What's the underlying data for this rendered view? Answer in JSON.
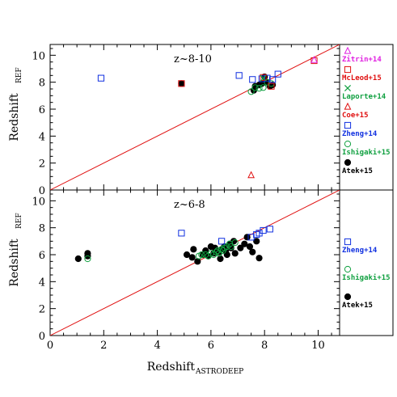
{
  "xlabel": "Redshift",
  "xlabel_sub": "ASTRODEEP",
  "ylabel": "Redshift",
  "ylabel_sub": "REF",
  "x_ticks": [
    "0",
    "2",
    "4",
    "6",
    "8",
    "10"
  ],
  "y_ticks": [
    "0",
    "2",
    "4",
    "6",
    "8",
    "10"
  ],
  "colors": {
    "Zitrin+14": "#e020e0",
    "McLeod+15": "#e01010",
    "Laporte+14": "#10a040",
    "Coe+15": "#e01010",
    "Zheng+14": "#1030e0",
    "Ishigaki+15": "#10a040",
    "Atek+15": "#000000",
    "one_to_one_line": "#e01010"
  },
  "chart_data": [
    {
      "type": "scatter",
      "title": "z~8-10",
      "xlim": [
        0,
        10.8
      ],
      "ylim": [
        0,
        10.8
      ],
      "one_to_one_line": true,
      "legend": [
        {
          "name": "Zitrin+14",
          "marker": "triangle"
        },
        {
          "name": "McLeod+15",
          "marker": "square"
        },
        {
          "name": "Laporte+14",
          "marker": "cross"
        },
        {
          "name": "Coe+15",
          "marker": "triangle"
        },
        {
          "name": "Zheng+14",
          "marker": "square"
        },
        {
          "name": "Ishigaki+15",
          "marker": "circle-open"
        },
        {
          "name": "Atek+15",
          "marker": "circle-filled"
        }
      ],
      "series": [
        {
          "name": "Atek+15",
          "marker": "circle-filled",
          "x": [
            4.9,
            7.6,
            7.65,
            7.8,
            7.9,
            8.05,
            8.2,
            8.3,
            8.0
          ],
          "y": [
            7.9,
            7.4,
            7.7,
            7.8,
            7.9,
            8.0,
            7.7,
            7.8,
            8.4
          ]
        },
        {
          "name": "Ishigaki+15",
          "marker": "circle-open",
          "x": [
            7.5,
            7.65,
            7.8,
            7.95,
            8.1,
            8.25
          ],
          "y": [
            7.3,
            7.6,
            7.55,
            7.6,
            8.0,
            7.9
          ]
        },
        {
          "name": "Zheng+14",
          "marker": "square",
          "x": [
            1.9,
            7.05,
            7.55,
            7.9,
            8.1,
            8.3,
            8.5
          ],
          "y": [
            8.3,
            8.5,
            8.2,
            8.25,
            8.3,
            8.2,
            8.6
          ]
        },
        {
          "name": "McLeod+15",
          "marker": "square",
          "x": [
            4.9,
            7.95,
            8.25,
            9.85
          ],
          "y": [
            7.9,
            8.35,
            7.7,
            9.6
          ]
        },
        {
          "name": "Zitrin+14",
          "marker": "triangle",
          "x": [
            9.85
          ],
          "y": [
            9.65
          ]
        },
        {
          "name": "Coe+15",
          "marker": "triangle",
          "x": [
            7.5
          ],
          "y": [
            1.1
          ]
        },
        {
          "name": "Laporte+14",
          "marker": "cross",
          "x": [
            7.95
          ],
          "y": [
            8.3
          ]
        }
      ]
    },
    {
      "type": "scatter",
      "title": "z~6-8",
      "xlim": [
        0,
        10.8
      ],
      "ylim": [
        0,
        10.8
      ],
      "one_to_one_line": true,
      "legend": [
        {
          "name": "Zheng+14",
          "marker": "square"
        },
        {
          "name": "Ishigaki+15",
          "marker": "circle-open"
        },
        {
          "name": "Atek+15",
          "marker": "circle-filled"
        }
      ],
      "series": [
        {
          "name": "Atek+15",
          "marker": "circle-filled",
          "x": [
            1.05,
            1.4,
            1.4,
            5.1,
            5.3,
            5.35,
            5.5,
            5.7,
            5.8,
            5.9,
            6.0,
            6.1,
            6.15,
            6.3,
            6.35,
            6.4,
            6.5,
            6.55,
            6.6,
            6.7,
            6.75,
            6.85,
            6.9,
            7.1,
            7.25,
            7.35,
            7.45,
            7.55,
            7.7,
            7.8
          ],
          "y": [
            5.7,
            5.9,
            6.1,
            6.0,
            5.8,
            6.4,
            5.5,
            6.0,
            6.3,
            5.9,
            6.6,
            6.1,
            6.5,
            6.2,
            5.7,
            6.4,
            6.6,
            6.3,
            6.0,
            6.8,
            6.5,
            7.0,
            6.1,
            6.5,
            6.8,
            7.3,
            6.6,
            6.2,
            7.0,
            5.75
          ]
        },
        {
          "name": "Ishigaki+15",
          "marker": "circle-open",
          "x": [
            1.4,
            5.55,
            5.65,
            5.8,
            5.9,
            6.0,
            6.1,
            6.2,
            6.25,
            6.3,
            6.4,
            6.45,
            6.5,
            6.6,
            6.7,
            6.75,
            6.9
          ],
          "y": [
            5.7,
            5.9,
            6.0,
            6.0,
            5.9,
            6.1,
            6.0,
            6.2,
            6.3,
            6.1,
            6.4,
            6.3,
            6.5,
            6.6,
            6.8,
            6.6,
            6.9
          ]
        },
        {
          "name": "Zheng+14",
          "marker": "square",
          "x": [
            4.9,
            6.4,
            7.5,
            7.7,
            7.8,
            7.95,
            8.2
          ],
          "y": [
            7.6,
            7.0,
            7.3,
            7.5,
            7.6,
            7.8,
            7.9
          ]
        }
      ]
    }
  ]
}
